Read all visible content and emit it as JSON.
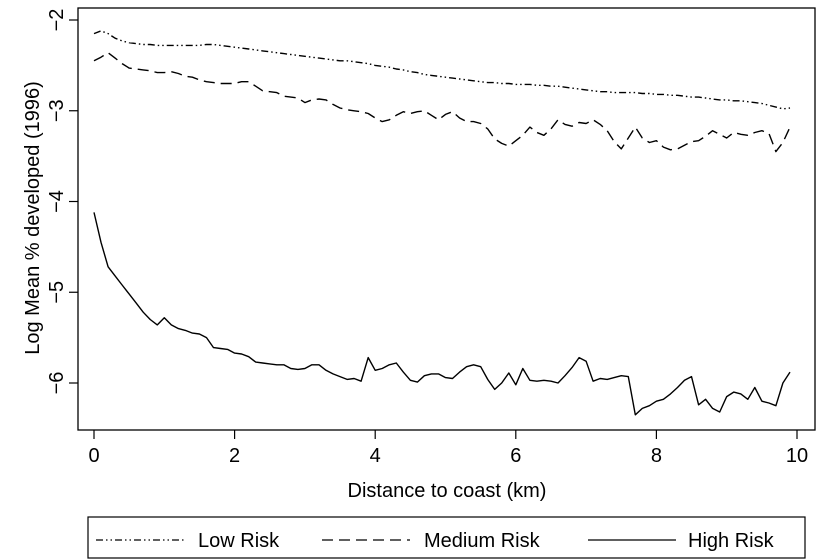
{
  "chart_data": {
    "type": "line",
    "title": "",
    "xlabel": "Distance to coast (km)",
    "ylabel": "Log Mean % developed (1996)",
    "xlim": [
      0,
      10
    ],
    "ylim": [
      -6.5,
      -1.9
    ],
    "xticks": [
      0,
      2,
      4,
      6,
      8,
      10
    ],
    "yticks": [
      -2,
      -3,
      -4,
      -5,
      -6
    ],
    "grid": false,
    "legend_position": "bottom",
    "series": [
      {
        "name": "Low Risk",
        "style": "dash-dot-dot",
        "x": [
          0,
          0.1,
          0.2,
          0.3,
          0.4,
          0.5,
          0.6,
          0.7,
          0.8,
          0.9,
          1.0,
          1.1,
          1.2,
          1.3,
          1.4,
          1.5,
          1.6,
          1.7,
          1.8,
          1.9,
          2.0,
          2.1,
          2.2,
          2.3,
          2.4,
          2.5,
          2.6,
          2.7,
          2.8,
          2.9,
          3.0,
          3.1,
          3.2,
          3.3,
          3.4,
          3.5,
          3.6,
          3.7,
          3.8,
          3.9,
          4.0,
          4.1,
          4.2,
          4.3,
          4.4,
          4.5,
          4.6,
          4.7,
          4.8,
          4.9,
          5.0,
          5.1,
          5.2,
          5.3,
          5.4,
          5.5,
          5.6,
          5.7,
          5.8,
          5.9,
          6.0,
          6.1,
          6.2,
          6.3,
          6.4,
          6.5,
          6.6,
          6.7,
          6.8,
          6.9,
          7.0,
          7.1,
          7.2,
          7.3,
          7.4,
          7.5,
          7.6,
          7.7,
          7.8,
          7.9,
          8.0,
          8.1,
          8.2,
          8.3,
          8.4,
          8.5,
          8.6,
          8.7,
          8.8,
          8.9,
          9.0,
          9.1,
          9.2,
          9.3,
          9.4,
          9.5,
          9.6,
          9.7,
          9.8,
          9.9
        ],
        "values": [
          -2.15,
          -2.12,
          -2.15,
          -2.2,
          -2.23,
          -2.25,
          -2.26,
          -2.27,
          -2.27,
          -2.28,
          -2.28,
          -2.28,
          -2.28,
          -2.28,
          -2.28,
          -2.28,
          -2.27,
          -2.27,
          -2.28,
          -2.29,
          -2.3,
          -2.31,
          -2.32,
          -2.33,
          -2.34,
          -2.35,
          -2.36,
          -2.37,
          -2.38,
          -2.39,
          -2.4,
          -2.41,
          -2.42,
          -2.43,
          -2.44,
          -2.45,
          -2.45,
          -2.46,
          -2.47,
          -2.48,
          -2.5,
          -2.51,
          -2.52,
          -2.54,
          -2.55,
          -2.57,
          -2.58,
          -2.6,
          -2.61,
          -2.62,
          -2.63,
          -2.64,
          -2.65,
          -2.66,
          -2.67,
          -2.68,
          -2.69,
          -2.69,
          -2.7,
          -2.7,
          -2.71,
          -2.71,
          -2.71,
          -2.72,
          -2.72,
          -2.73,
          -2.73,
          -2.74,
          -2.75,
          -2.76,
          -2.77,
          -2.78,
          -2.79,
          -2.79,
          -2.8,
          -2.8,
          -2.8,
          -2.8,
          -2.81,
          -2.81,
          -2.82,
          -2.82,
          -2.83,
          -2.83,
          -2.84,
          -2.85,
          -2.85,
          -2.86,
          -2.87,
          -2.88,
          -2.88,
          -2.89,
          -2.89,
          -2.9,
          -2.91,
          -2.92,
          -2.94,
          -2.96,
          -2.98,
          -2.97
        ]
      },
      {
        "name": "Medium Risk",
        "style": "dash",
        "x": [
          0,
          0.1,
          0.2,
          0.3,
          0.4,
          0.5,
          0.6,
          0.7,
          0.8,
          0.9,
          1.0,
          1.1,
          1.2,
          1.3,
          1.4,
          1.5,
          1.6,
          1.7,
          1.8,
          1.9,
          2.0,
          2.1,
          2.2,
          2.3,
          2.4,
          2.5,
          2.6,
          2.7,
          2.8,
          2.9,
          3.0,
          3.1,
          3.2,
          3.3,
          3.4,
          3.5,
          3.6,
          3.7,
          3.8,
          3.9,
          4.0,
          4.1,
          4.2,
          4.3,
          4.4,
          4.5,
          4.6,
          4.7,
          4.8,
          4.9,
          5.0,
          5.1,
          5.2,
          5.3,
          5.4,
          5.5,
          5.6,
          5.7,
          5.8,
          5.9,
          6.0,
          6.1,
          6.2,
          6.3,
          6.4,
          6.5,
          6.6,
          6.7,
          6.8,
          6.9,
          7.0,
          7.1,
          7.2,
          7.3,
          7.4,
          7.5,
          7.6,
          7.7,
          7.8,
          7.9,
          8.0,
          8.1,
          8.2,
          8.3,
          8.4,
          8.5,
          8.6,
          8.7,
          8.8,
          8.9,
          9.0,
          9.1,
          9.2,
          9.3,
          9.4,
          9.5,
          9.6,
          9.7,
          9.8,
          9.9
        ],
        "values": [
          -2.45,
          -2.41,
          -2.36,
          -2.42,
          -2.48,
          -2.53,
          -2.54,
          -2.55,
          -2.56,
          -2.58,
          -2.58,
          -2.57,
          -2.59,
          -2.62,
          -2.63,
          -2.66,
          -2.68,
          -2.69,
          -2.7,
          -2.7,
          -2.7,
          -2.68,
          -2.68,
          -2.73,
          -2.78,
          -2.79,
          -2.8,
          -2.84,
          -2.85,
          -2.86,
          -2.91,
          -2.88,
          -2.87,
          -2.88,
          -2.93,
          -2.97,
          -2.99,
          -3.0,
          -3.01,
          -3.03,
          -3.08,
          -3.12,
          -3.1,
          -3.05,
          -3.01,
          -3.03,
          -3.01,
          -3.0,
          -3.05,
          -3.1,
          -3.04,
          -3.01,
          -3.08,
          -3.12,
          -3.12,
          -3.14,
          -3.2,
          -3.31,
          -3.36,
          -3.39,
          -3.33,
          -3.27,
          -3.18,
          -3.24,
          -3.27,
          -3.2,
          -3.1,
          -3.15,
          -3.17,
          -3.13,
          -3.14,
          -3.1,
          -3.15,
          -3.22,
          -3.34,
          -3.42,
          -3.3,
          -3.18,
          -3.3,
          -3.35,
          -3.33,
          -3.4,
          -3.43,
          -3.42,
          -3.38,
          -3.34,
          -3.33,
          -3.28,
          -3.22,
          -3.26,
          -3.3,
          -3.24,
          -3.26,
          -3.27,
          -3.24,
          -3.22,
          -3.25,
          -3.45,
          -3.35,
          -3.18
        ]
      },
      {
        "name": "High Risk",
        "style": "solid",
        "x": [
          0,
          0.1,
          0.2,
          0.3,
          0.4,
          0.5,
          0.6,
          0.7,
          0.8,
          0.9,
          1.0,
          1.1,
          1.2,
          1.3,
          1.4,
          1.5,
          1.6,
          1.7,
          1.8,
          1.9,
          2.0,
          2.1,
          2.2,
          2.3,
          2.4,
          2.5,
          2.6,
          2.7,
          2.8,
          2.9,
          3.0,
          3.1,
          3.2,
          3.3,
          3.4,
          3.5,
          3.6,
          3.7,
          3.8,
          3.9,
          4.0,
          4.1,
          4.2,
          4.3,
          4.4,
          4.5,
          4.6,
          4.7,
          4.8,
          4.9,
          5.0,
          5.1,
          5.2,
          5.3,
          5.4,
          5.5,
          5.6,
          5.7,
          5.8,
          5.9,
          6.0,
          6.1,
          6.2,
          6.3,
          6.4,
          6.5,
          6.6,
          6.7,
          6.8,
          6.9,
          7.0,
          7.1,
          7.2,
          7.3,
          7.4,
          7.5,
          7.6,
          7.7,
          7.8,
          7.9,
          8.0,
          8.1,
          8.2,
          8.3,
          8.4,
          8.5,
          8.6,
          8.7,
          8.8,
          8.9,
          9.0,
          9.1,
          9.2,
          9.3,
          9.4,
          9.5,
          9.6,
          9.7,
          9.8,
          9.9
        ],
        "values": [
          -4.12,
          -4.45,
          -4.72,
          -4.82,
          -4.92,
          -5.02,
          -5.12,
          -5.22,
          -5.3,
          -5.36,
          -5.28,
          -5.36,
          -5.4,
          -5.42,
          -5.45,
          -5.46,
          -5.5,
          -5.61,
          -5.62,
          -5.63,
          -5.67,
          -5.68,
          -5.71,
          -5.77,
          -5.78,
          -5.79,
          -5.8,
          -5.8,
          -5.84,
          -5.85,
          -5.84,
          -5.8,
          -5.8,
          -5.86,
          -5.9,
          -5.93,
          -5.96,
          -5.95,
          -5.98,
          -5.72,
          -5.86,
          -5.84,
          -5.8,
          -5.78,
          -5.88,
          -5.97,
          -5.99,
          -5.92,
          -5.9,
          -5.9,
          -5.94,
          -5.95,
          -5.88,
          -5.82,
          -5.8,
          -5.82,
          -5.96,
          -6.07,
          -6.0,
          -5.89,
          -6.02,
          -5.84,
          -5.97,
          -5.98,
          -5.97,
          -5.98,
          -6.0,
          -5.92,
          -5.83,
          -5.72,
          -5.76,
          -5.98,
          -5.95,
          -5.96,
          -5.94,
          -5.92,
          -5.93,
          -6.35,
          -6.28,
          -6.25,
          -6.2,
          -6.18,
          -6.12,
          -6.05,
          -5.97,
          -5.93,
          -6.24,
          -6.18,
          -6.28,
          -6.32,
          -6.15,
          -6.1,
          -6.12,
          -6.18,
          -6.05,
          -6.2,
          -6.22,
          -6.25,
          -6.0,
          -5.88
        ]
      }
    ]
  }
}
